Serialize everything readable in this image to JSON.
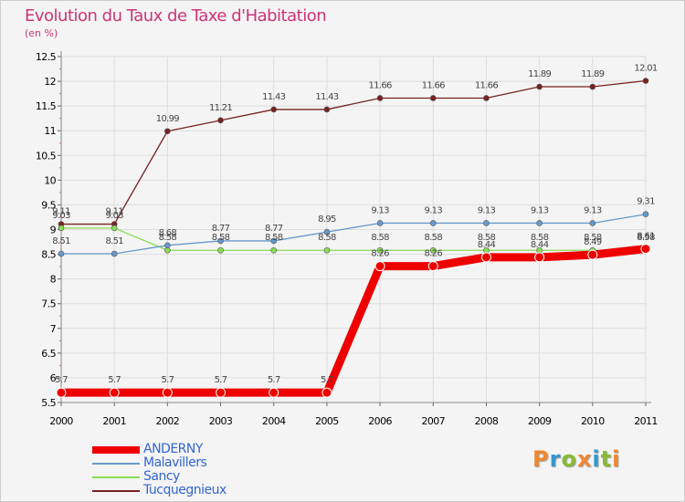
{
  "chart_data": {
    "type": "line",
    "title": "Evolution du Taux de Taxe d'Habitation",
    "subtitle": "(en %)",
    "categories": [
      "2000",
      "2001",
      "2002",
      "2003",
      "2004",
      "2005",
      "2006",
      "2007",
      "2008",
      "2009",
      "2010",
      "2011"
    ],
    "ylim": [
      5.5,
      12.5
    ],
    "yticks": [
      5.5,
      6,
      6.5,
      7,
      7.5,
      8,
      8.5,
      9,
      9.5,
      10,
      10.5,
      11,
      11.5,
      12,
      12.5
    ],
    "ytick_labels": [
      "5.5",
      "6",
      "6.5",
      "7",
      "7.5",
      "8",
      "8.5",
      "9",
      "9.5",
      "10",
      "10.5",
      "11",
      "11.5",
      "12",
      "12.5"
    ],
    "grid": true,
    "legend": "bottom-left",
    "series": [
      {
        "name": "ANDERNY",
        "color": "#ee0000",
        "values": [
          5.7,
          5.7,
          5.7,
          5.7,
          5.7,
          5.7,
          8.26,
          8.26,
          8.44,
          8.44,
          8.49,
          8.61
        ],
        "labels": [
          "5.7",
          "5.7",
          "5.7",
          "5.7",
          "5.7",
          "5.7",
          "8.26",
          "8.26",
          "8.44",
          "8.44",
          "8.49",
          "8.61"
        ]
      },
      {
        "name": "Malavillers",
        "color": "#6699cc",
        "values": [
          8.51,
          8.51,
          8.68,
          8.77,
          8.77,
          8.95,
          9.13,
          9.13,
          9.13,
          9.13,
          9.13,
          9.31
        ],
        "labels": [
          "8.51",
          "8.51",
          "8.68",
          "8.77",
          "8.77",
          "8.95",
          "9.13",
          "9.13",
          "9.13",
          "9.13",
          "9.13",
          "9.31"
        ]
      },
      {
        "name": "Sancy",
        "color": "#88dd55",
        "values": [
          9.03,
          9.03,
          8.58,
          8.58,
          8.58,
          8.58,
          8.58,
          8.58,
          8.58,
          8.58,
          8.58,
          8.58
        ],
        "labels": [
          "9.03",
          "9.03",
          "8.58",
          "8.58",
          "8.58",
          "8.58",
          "8.58",
          "8.58",
          "8.58",
          "8.58",
          "8.58",
          "8.58"
        ]
      },
      {
        "name": "Tucquegnieux",
        "color": "#772222",
        "values": [
          9.11,
          9.11,
          10.99,
          11.21,
          11.43,
          11.43,
          11.66,
          11.66,
          11.66,
          11.89,
          11.89,
          12.01
        ],
        "labels": [
          "9.11",
          "9.11",
          "10.99",
          "11.21",
          "11.43",
          "11.43",
          "11.66",
          "11.66",
          "11.66",
          "11.89",
          "11.89",
          "12.01"
        ]
      }
    ]
  },
  "logo": {
    "letters": [
      "P",
      "r",
      "o",
      "x",
      "i",
      "t",
      "i"
    ],
    "colors": [
      "#ee8833",
      "#3399cc",
      "#88bb33",
      "#ee8833",
      "#3399cc",
      "#88bb33",
      "#ee8833"
    ]
  }
}
